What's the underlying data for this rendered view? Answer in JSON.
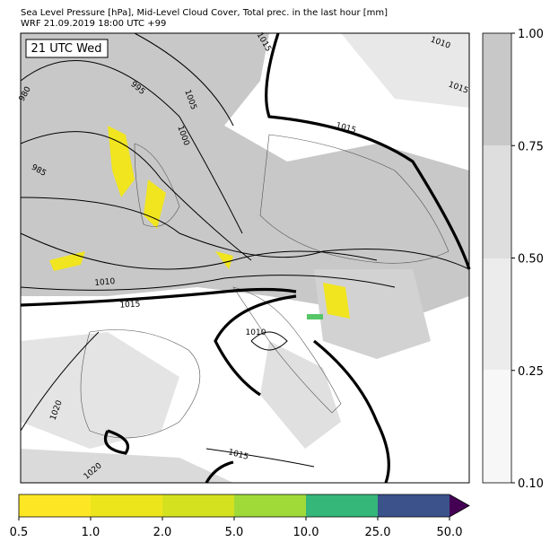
{
  "header": {
    "title": "Sea Level Pressure [hPa], Mid-Level Cloud Cover, Total prec. in the last hour [mm]",
    "subtitle": "WRF 21.09.2019 18:00 UTC +99"
  },
  "map": {
    "time_label": "21 UTC Wed",
    "contour_labels": [
      "1010",
      "1015",
      "1015",
      "1005",
      "995",
      "1000",
      "980",
      "985",
      "1010",
      "1015",
      "1010",
      "1020",
      "1015",
      "1020",
      "1015"
    ]
  },
  "cloud_colorbar": {
    "ticks": [
      "0.10",
      "0.25",
      "0.50",
      "0.75",
      "1.00"
    ]
  },
  "precip_colorbar": {
    "ticks": [
      "0.5",
      "1.0",
      "2.0",
      "5.0",
      "10.0",
      "25.0",
      "50.0"
    ]
  }
}
